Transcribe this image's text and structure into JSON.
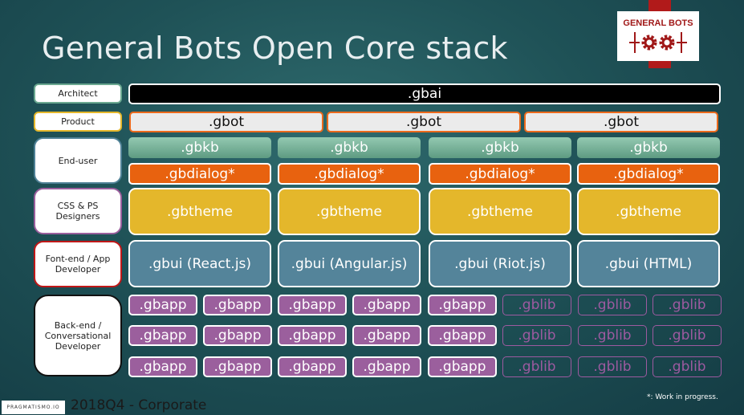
{
  "title": "General Bots Open Core stack",
  "logo": {
    "text": "GENERAL BOTS"
  },
  "footer": {
    "brand": "PRAGMATISMO.IO",
    "text": "2018Q4 - Corporate",
    "note": "*: Work in progress."
  },
  "roles": [
    "Architect",
    "Product",
    "End-user",
    "CSS & PS Designers",
    "Font-end / App Developer",
    "Back-end / Conversational Developer"
  ],
  "rows": {
    "architect": [
      ".gbai"
    ],
    "product": [
      ".gbot",
      ".gbot",
      ".gbot"
    ],
    "gbkb": [
      ".gbkb",
      ".gbkb",
      ".gbkb",
      ".gbkb"
    ],
    "gbdialog": [
      ".gbdialog*",
      ".gbdialog*",
      ".gbdialog*",
      ".gbdialog*"
    ],
    "gbtheme": [
      ".gbtheme",
      ".gbtheme",
      ".gbtheme",
      ".gbtheme"
    ],
    "gbui": [
      ".gbui (React.js)",
      ".gbui (Angular.js)",
      ".gbui (Riot.js)",
      ".gbui (HTML)"
    ],
    "backend": [
      [
        ".gbapp",
        ".gbapp",
        ".gbapp",
        ".gbapp",
        ".gbapp",
        ".gblib",
        ".gblib",
        ".gblib"
      ],
      [
        ".gbapp",
        ".gbapp",
        ".gbapp",
        ".gbapp",
        ".gbapp",
        ".gblib",
        ".gblib",
        ".gblib"
      ],
      [
        ".gbapp",
        ".gbapp",
        ".gbapp",
        ".gbapp",
        ".gbapp",
        ".gblib",
        ".gblib",
        ".gblib"
      ]
    ]
  },
  "colors": {
    "gbai": "#000000",
    "gbot": "#ebebeb",
    "gbkb": "#6fae93",
    "gbdialog": "#e8620f",
    "gbtheme": "#e4b72b",
    "gbui": "#54849a",
    "gbapp": "#9b5f9d",
    "logo_red": "#b11a1a"
  }
}
